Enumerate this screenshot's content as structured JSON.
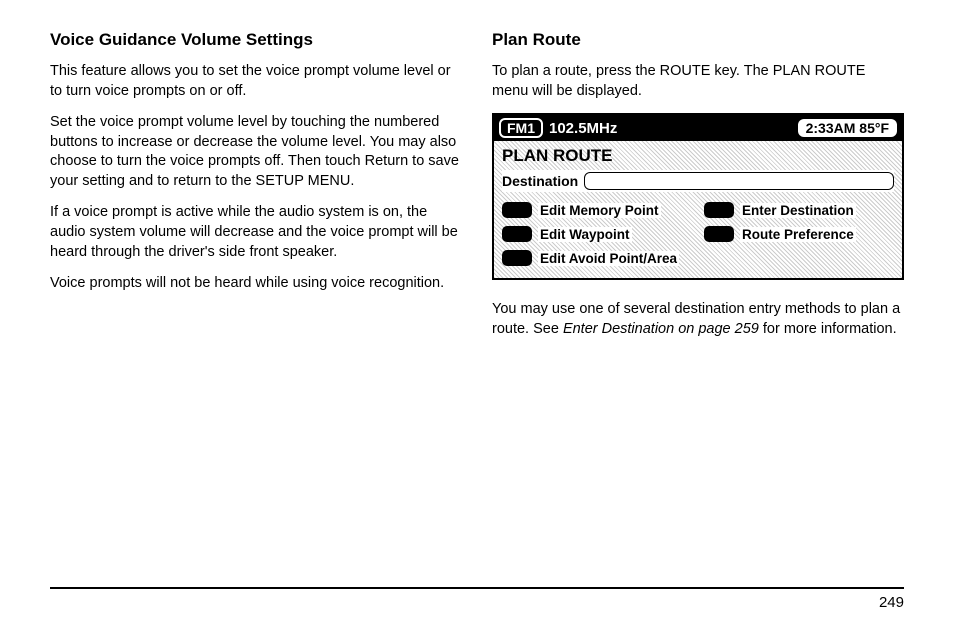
{
  "left": {
    "heading": "Voice Guidance Volume Settings",
    "p1": "This feature allows you to set the voice prompt volume level or to turn voice prompts on or off.",
    "p2": "Set the voice prompt volume level by touching the numbered buttons to increase or decrease the volume level. You may also choose to turn the voice prompts off. Then touch Return to save your setting and to return to the SETUP MENU.",
    "p3": "If a voice prompt is active while the audio system is on, the audio system volume will decrease and the voice prompt will be heard through the driver's side front speaker.",
    "p4": "Voice prompts will not be heard while using voice recognition."
  },
  "right": {
    "heading": "Plan Route",
    "p1": "To plan a route, press the ROUTE key. The PLAN ROUTE menu will be displayed.",
    "p2a": "You may use one of several destination entry methods to plan a route. See ",
    "p2b": "Enter Destination on page 259",
    "p2c": " for more information."
  },
  "screen": {
    "band": "FM1",
    "freq": "102.5MHz",
    "timeTemp": "2:33AM 85°F",
    "title": "PLAN ROUTE",
    "destLabel": "Destination",
    "items": [
      "Edit Memory Point",
      "Enter Destination",
      "Edit Waypoint",
      "Route Preference",
      "Edit Avoid Point/Area"
    ]
  },
  "pageNum": "249"
}
